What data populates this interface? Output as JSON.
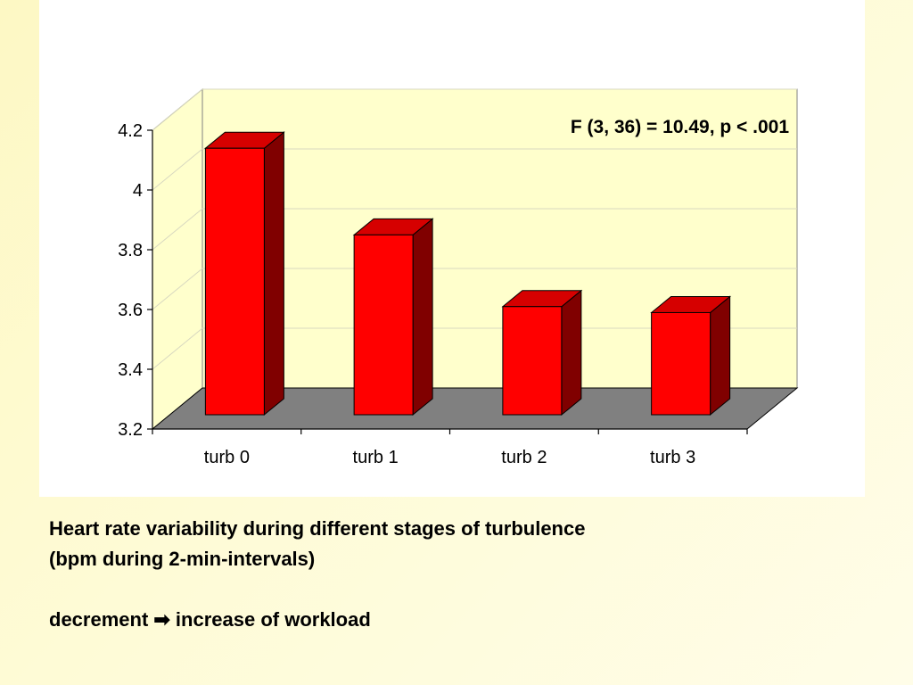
{
  "colors": {
    "bar_front": "#ff0000",
    "bar_side": "#800000",
    "bar_top": "#d60000",
    "plot_wall": "#ffffcc",
    "floor": "#808080",
    "outline": "#000000"
  },
  "chart_data": {
    "type": "bar",
    "style": "3d",
    "categories": [
      "turb 0",
      "turb 1",
      "turb 2",
      "turb 3"
    ],
    "values": [
      4.08,
      3.79,
      3.55,
      3.53
    ],
    "ylim": [
      3.2,
      4.2
    ],
    "yticks": [
      "4.2",
      "4",
      "3.8",
      "3.6",
      "3.4",
      "3.2"
    ],
    "ytick_values": [
      4.2,
      4.0,
      3.8,
      3.6,
      3.4,
      3.2
    ],
    "annotation": "F (3, 36) = 10.49, p < .001",
    "grid": true,
    "legend": "none"
  },
  "captions": {
    "line1": "Heart rate variability during different stages of turbulence",
    "line2": "(bpm during 2-min-intervals)",
    "line3": "decrement ➡ increase of workload"
  }
}
